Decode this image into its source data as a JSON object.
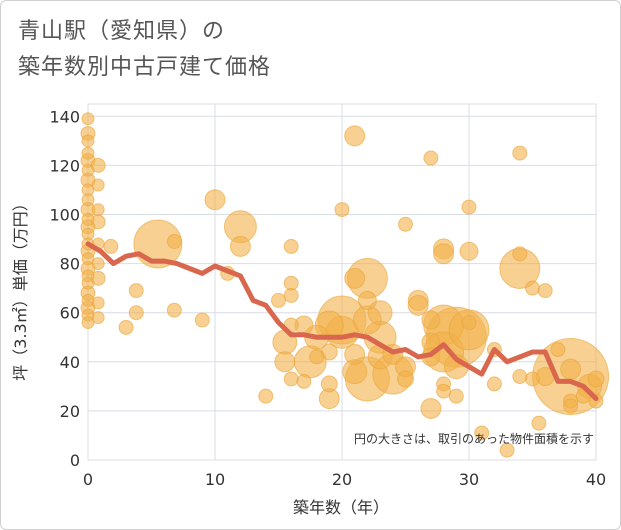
{
  "title_line1": "青山駅（愛知県）の",
  "title_line2": "築年数別中古戸建て価格",
  "chart_data": {
    "type": "scatter",
    "title": "青山駅（愛知県）の築年数別中古戸建て価格",
    "xlabel": "築年数（年）",
    "ylabel": "坪（3.3㎡）単価（万円）",
    "xlim": [
      0,
      40
    ],
    "ylim": [
      0,
      145
    ],
    "xticks": [
      "0",
      "10",
      "20",
      "30",
      "40"
    ],
    "yticks": [
      "0",
      "20",
      "40",
      "60",
      "80",
      "100",
      "120",
      "140"
    ],
    "note": "円の大きさは、取引のあった物件面積を示す",
    "colors": {
      "bubble": "#f2b04a",
      "line": "#d9674e",
      "grid": "#d8dde6"
    },
    "bubbles": [
      [
        0,
        139,
        6
      ],
      [
        0,
        133,
        7
      ],
      [
        0,
        130,
        6
      ],
      [
        0,
        125,
        6
      ],
      [
        0,
        122,
        7
      ],
      [
        0,
        118,
        6
      ],
      [
        0,
        114,
        7
      ],
      [
        0,
        110,
        6
      ],
      [
        0,
        106,
        6
      ],
      [
        0,
        102,
        7
      ],
      [
        0,
        98,
        6
      ],
      [
        0,
        95,
        7
      ],
      [
        0,
        92,
        6
      ],
      [
        0,
        88,
        6
      ],
      [
        0,
        85,
        7
      ],
      [
        0,
        82,
        6
      ],
      [
        0,
        78,
        7
      ],
      [
        0,
        75,
        6
      ],
      [
        0,
        72,
        6
      ],
      [
        0,
        68,
        7
      ],
      [
        0,
        65,
        6
      ],
      [
        0,
        62,
        7
      ],
      [
        0,
        59,
        6
      ],
      [
        0,
        56,
        6
      ],
      [
        0.8,
        120,
        7
      ],
      [
        0.8,
        112,
        6
      ],
      [
        0.8,
        102,
        6
      ],
      [
        0.8,
        97,
        7
      ],
      [
        0.8,
        88,
        6
      ],
      [
        0.8,
        80,
        6
      ],
      [
        0.8,
        74,
        7
      ],
      [
        0.8,
        64,
        6
      ],
      [
        0.8,
        58,
        6
      ],
      [
        1.8,
        87,
        7
      ],
      [
        3,
        54,
        7
      ],
      [
        3.8,
        69,
        7
      ],
      [
        3.8,
        60,
        7
      ],
      [
        5.5,
        88,
        24
      ],
      [
        6.8,
        89,
        7
      ],
      [
        6.8,
        61,
        7
      ],
      [
        9,
        57,
        7
      ],
      [
        10,
        106,
        10
      ],
      [
        11,
        76,
        7
      ],
      [
        12,
        95,
        16
      ],
      [
        12,
        87,
        10
      ],
      [
        14,
        26,
        7
      ],
      [
        15,
        65,
        7
      ],
      [
        15.5,
        48,
        12
      ],
      [
        15.5,
        40,
        10
      ],
      [
        16,
        87,
        7
      ],
      [
        16,
        72,
        7
      ],
      [
        16,
        67,
        7
      ],
      [
        16,
        55,
        7
      ],
      [
        16,
        33,
        7
      ],
      [
        17,
        55,
        9
      ],
      [
        17,
        32,
        7
      ],
      [
        17.5,
        40,
        16
      ],
      [
        18,
        50,
        12
      ],
      [
        18,
        42,
        7
      ],
      [
        19,
        55,
        14
      ],
      [
        19,
        44,
        8
      ],
      [
        19,
        31,
        8
      ],
      [
        19,
        25,
        10
      ],
      [
        20,
        102,
        7
      ],
      [
        20,
        57,
        24
      ],
      [
        20,
        52,
        16
      ],
      [
        21,
        132,
        10
      ],
      [
        21,
        74,
        10
      ],
      [
        21,
        43,
        10
      ],
      [
        21,
        36,
        12
      ],
      [
        22,
        74,
        20
      ],
      [
        22,
        65,
        9
      ],
      [
        22,
        57,
        14
      ],
      [
        22,
        33,
        22
      ],
      [
        23,
        50,
        16
      ],
      [
        23,
        42,
        12
      ],
      [
        23,
        60,
        12
      ],
      [
        24,
        35,
        20
      ],
      [
        24,
        43,
        10
      ],
      [
        25,
        96,
        7
      ],
      [
        25,
        38,
        10
      ],
      [
        25,
        33,
        8
      ],
      [
        26,
        65,
        10
      ],
      [
        26,
        63,
        10
      ],
      [
        27,
        123,
        7
      ],
      [
        27,
        57,
        9
      ],
      [
        27,
        48,
        9
      ],
      [
        27,
        42,
        9
      ],
      [
        27,
        21,
        10
      ],
      [
        28,
        86,
        10
      ],
      [
        28,
        84,
        10
      ],
      [
        28,
        55,
        20
      ],
      [
        28,
        44,
        20
      ],
      [
        28,
        31,
        7
      ],
      [
        28,
        28,
        7
      ],
      [
        29,
        50,
        30
      ],
      [
        29,
        38,
        12
      ],
      [
        29,
        26,
        7
      ],
      [
        30,
        103,
        7
      ],
      [
        30,
        85,
        9
      ],
      [
        30,
        56,
        7
      ],
      [
        30,
        53,
        20
      ],
      [
        31,
        11,
        7
      ],
      [
        32,
        31,
        7
      ],
      [
        32,
        45,
        7
      ],
      [
        33,
        4,
        7
      ],
      [
        34,
        125,
        7
      ],
      [
        34,
        84,
        7
      ],
      [
        34,
        78,
        20
      ],
      [
        34,
        34,
        7
      ],
      [
        35,
        70,
        7
      ],
      [
        35,
        33,
        7
      ],
      [
        35.5,
        15,
        7
      ],
      [
        36,
        69,
        7
      ],
      [
        36,
        34,
        9
      ],
      [
        37,
        45,
        7
      ],
      [
        38,
        34,
        38
      ],
      [
        38,
        37,
        10
      ],
      [
        38,
        24,
        7
      ],
      [
        38,
        22,
        7
      ],
      [
        39,
        26,
        7
      ],
      [
        39.5,
        30,
        12
      ],
      [
        40,
        33,
        8
      ],
      [
        40,
        24,
        7
      ]
    ],
    "trend": [
      [
        0,
        88
      ],
      [
        1,
        85
      ],
      [
        2,
        80
      ],
      [
        3,
        83
      ],
      [
        4,
        84
      ],
      [
        5,
        81
      ],
      [
        6,
        81
      ],
      [
        7,
        80
      ],
      [
        8,
        78
      ],
      [
        9,
        76
      ],
      [
        10,
        79
      ],
      [
        11,
        77
      ],
      [
        12,
        75
      ],
      [
        13,
        65
      ],
      [
        14,
        63
      ],
      [
        15,
        56
      ],
      [
        16,
        51
      ],
      [
        17,
        51
      ],
      [
        18,
        50
      ],
      [
        19,
        50
      ],
      [
        20,
        50
      ],
      [
        21,
        51
      ],
      [
        22,
        50
      ],
      [
        23,
        47
      ],
      [
        24,
        44
      ],
      [
        25,
        45
      ],
      [
        26,
        42
      ],
      [
        27,
        43
      ],
      [
        28,
        47
      ],
      [
        29,
        41
      ],
      [
        30,
        38
      ],
      [
        31,
        35
      ],
      [
        32,
        45
      ],
      [
        33,
        40
      ],
      [
        34,
        42
      ],
      [
        35,
        44
      ],
      [
        36,
        44
      ],
      [
        37,
        32
      ],
      [
        38,
        32
      ],
      [
        39,
        30
      ],
      [
        40,
        25
      ]
    ]
  }
}
